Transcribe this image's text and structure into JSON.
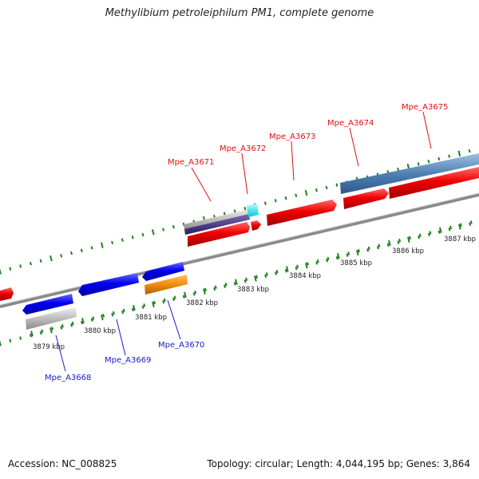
{
  "header": {
    "title": "Methylibium petroleiphilum PM1, complete genome"
  },
  "footer": {
    "accession": "Accession: NC_008825",
    "stats": "Topology: circular; Length: 4,044,195 bp; Genes: 3,864"
  },
  "colors": {
    "forward_gene": "#e81010",
    "reverse_gene": "#1010e0",
    "backbone": "#888888",
    "tick": "#208020",
    "label_forward": "#e01010",
    "label_reverse": "#1a1ad0"
  },
  "scale_labels": [
    "3879 kbp",
    "3880 kbp",
    "3881 kbp",
    "3882 kbp",
    "3883 kbp",
    "3884 kbp",
    "3885 kbp",
    "3886 kbp",
    "3887 kbp"
  ],
  "genes_forward": [
    "Mpe_A3671",
    "Mpe_A3672",
    "Mpe_A3673",
    "Mpe_A3674",
    "Mpe_A3675"
  ],
  "genes_reverse": [
    "Mpe_A3668",
    "Mpe_A3669",
    "Mpe_A3670"
  ]
}
